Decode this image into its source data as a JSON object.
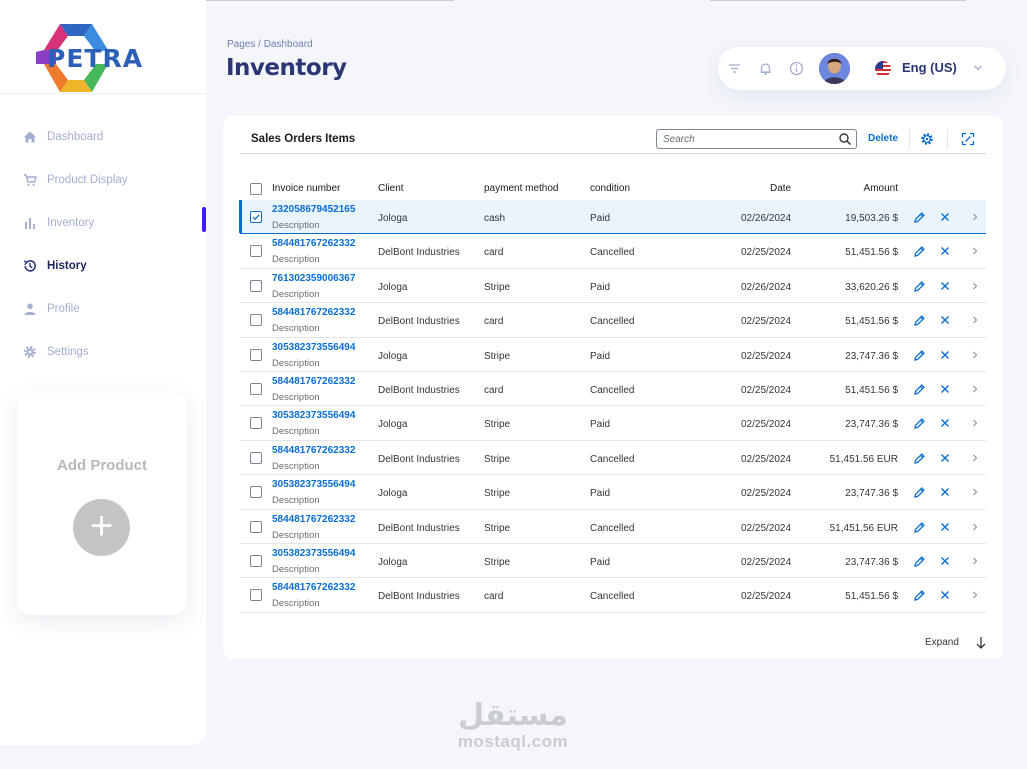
{
  "brand": {
    "name": "PETRA"
  },
  "sidebar": {
    "items": [
      {
        "label": "Dashboard",
        "icon": "home-icon"
      },
      {
        "label": "Product Display",
        "icon": "cart-icon"
      },
      {
        "label": "Inventory",
        "icon": "bar-chart-icon"
      },
      {
        "label": "History",
        "icon": "history-icon",
        "active": true
      },
      {
        "label": "Profile",
        "icon": "person-icon"
      },
      {
        "label": "Settings",
        "icon": "gear-icon"
      }
    ],
    "add_product": {
      "title": "Add Product",
      "button": "+"
    }
  },
  "header": {
    "breadcrumb": "Pages / Dashboard",
    "title": "Inventory",
    "language": "Eng (US)"
  },
  "card": {
    "title": "Sales Orders Items",
    "search_placeholder": "Search",
    "delete_label": "Delete",
    "expand_label": "Expand",
    "columns": {
      "invoice": "Invoice number",
      "client": "Client",
      "payment": "payment method",
      "condition": "condition",
      "date": "Date",
      "amount": "Amount"
    },
    "rows": [
      {
        "invoice": "232058679452165",
        "desc": "Description",
        "client": "Jologa",
        "payment": "cash",
        "condition": "Paid",
        "date": "02/26/2024",
        "amount": "19,503.26 $",
        "selected": true
      },
      {
        "invoice": "584481767262332",
        "desc": "Description",
        "client": "DelBont Industries",
        "payment": "card",
        "condition": "Cancelled",
        "date": "02/25/2024",
        "amount": "51,451.56 $"
      },
      {
        "invoice": "761302359006367",
        "desc": "Description",
        "client": "Jologa",
        "payment": "Stripe",
        "condition": "Paid",
        "date": "02/26/2024",
        "amount": "33,620.26 $"
      },
      {
        "invoice": "584481767262332",
        "desc": "Description",
        "client": "DelBont Industries",
        "payment": "card",
        "condition": "Cancelled",
        "date": "02/25/2024",
        "amount": "51,451.56 $"
      },
      {
        "invoice": "305382373556494",
        "desc": "Description",
        "client": "Jologa",
        "payment": "Stripe",
        "condition": "Paid",
        "date": "02/25/2024",
        "amount": "23,747.36 $"
      },
      {
        "invoice": "584481767262332",
        "desc": "Description",
        "client": "DelBont Industries",
        "payment": "card",
        "condition": "Cancelled",
        "date": "02/25/2024",
        "amount": "51,451.56 $"
      },
      {
        "invoice": "305382373556494",
        "desc": "Description",
        "client": "Jologa",
        "payment": "Stripe",
        "condition": "Paid",
        "date": "02/25/2024",
        "amount": "23,747.36 $"
      },
      {
        "invoice": "584481767262332",
        "desc": "Description",
        "client": "DelBont Industries",
        "payment": "Stripe",
        "condition": "Cancelled",
        "date": "02/25/2024",
        "amount": "51,451.56 EUR"
      },
      {
        "invoice": "305382373556494",
        "desc": "Description",
        "client": "Jologa",
        "payment": "Stripe",
        "condition": "Paid",
        "date": "02/25/2024",
        "amount": "23,747.36 $"
      },
      {
        "invoice": "584481767262332",
        "desc": "Description",
        "client": "DelBont Industries",
        "payment": "Stripe",
        "condition": "Cancelled",
        "date": "02/25/2024",
        "amount": "51,451.56 EUR"
      },
      {
        "invoice": "305382373556494",
        "desc": "Description",
        "client": "Jologa",
        "payment": "Stripe",
        "condition": "Paid",
        "date": "02/25/2024",
        "amount": "23,747.36 $"
      },
      {
        "invoice": "584481767262332",
        "desc": "Description",
        "client": "DelBont Industries",
        "payment": "card",
        "condition": "Cancelled",
        "date": "02/25/2024",
        "amount": "51,451.56 $"
      }
    ]
  },
  "watermark": {
    "arabic": "مستقل",
    "latin": "mostaql.com"
  },
  "colors": {
    "accent": "#4318ff",
    "link": "#0a6ed1",
    "title": "#2b3674"
  }
}
